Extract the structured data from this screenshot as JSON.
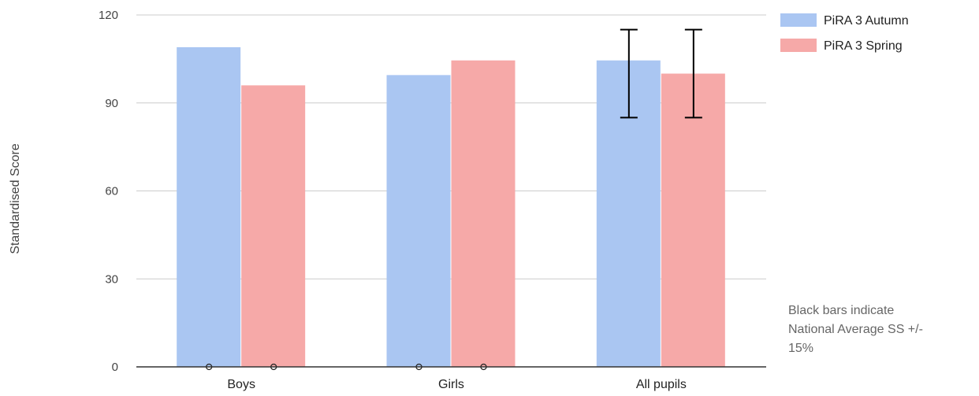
{
  "chart_data": {
    "type": "bar",
    "categories": [
      "Boys",
      "Girls",
      "All pupils"
    ],
    "series": [
      {
        "name": "PiRA 3 Autumn",
        "color": "#aac6f2",
        "values": [
          109,
          99.5,
          104.5
        ]
      },
      {
        "name": "PiRA 3 Spring",
        "color": "#f6a9a8",
        "values": [
          96,
          104.5,
          100
        ]
      }
    ],
    "error_bars": [
      {
        "category": "All pupils",
        "series": "PiRA 3 Autumn",
        "low": 85,
        "high": 115
      },
      {
        "category": "All pupils",
        "series": "PiRA 3 Spring",
        "low": 85,
        "high": 115
      }
    ],
    "xlabel": "",
    "ylabel": "Standardised Score",
    "ylim": [
      0,
      120
    ],
    "yticks": [
      0,
      30,
      60,
      90,
      120
    ],
    "grid": true,
    "legend_position": "top-right"
  },
  "note": {
    "lines": [
      "Black bars indicate",
      "National Average SS +/-",
      "15%"
    ]
  }
}
